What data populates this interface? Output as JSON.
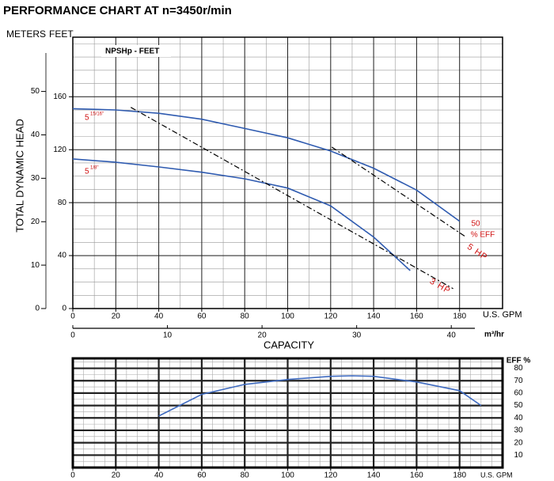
{
  "title": "PERFORMANCE CHART AT n=3450r/min",
  "chart_data": [
    {
      "type": "line",
      "y_label": "TOTAL DYNAMIC HEAD",
      "y_unit": "FEET",
      "y2_unit": "METERS",
      "x_unit": "U.S. GPM",
      "x2_unit": "m³/hr",
      "x_label": "CAPACITY",
      "annotation": "NPSHp - FEET",
      "xlim": [
        0,
        200
      ],
      "xticks": [
        0,
        20,
        40,
        60,
        80,
        100,
        120,
        140,
        160,
        180
      ],
      "x2lim": [
        0,
        45.42
      ],
      "x2ticks": [
        0,
        10,
        20,
        30,
        40
      ],
      "ylim": [
        0,
        205
      ],
      "yticks": [
        0,
        40,
        80,
        120,
        160
      ],
      "y2lim": [
        0,
        62.5
      ],
      "y2ticks": [
        0,
        10,
        20,
        30,
        40,
        50
      ],
      "grid": true,
      "series": [
        {
          "label": "5",
          "label_sup": "15/16\"",
          "color": "#2f5bb0",
          "style": "solid",
          "x": [
            0,
            20,
            40,
            60,
            80,
            100,
            120,
            140,
            160,
            180
          ],
          "values": [
            151,
            150,
            147.5,
            143,
            136,
            129,
            119,
            106,
            89.5,
            66
          ]
        },
        {
          "label": "5",
          "label_sup": "1/8\"",
          "color": "#2f5bb0",
          "style": "solid",
          "x": [
            0,
            20,
            40,
            60,
            80,
            100,
            120,
            140,
            157
          ],
          "values": [
            113,
            110.5,
            107,
            103,
            98,
            91,
            77.6,
            54,
            28.7
          ]
        },
        {
          "label": "3 HP",
          "color": "#000000",
          "style": "dashdot",
          "x": [
            27,
            177
          ],
          "values": [
            152,
            15
          ]
        },
        {
          "label": "5 HP",
          "color": "#000000",
          "style": "dashdot",
          "x": [
            120.5,
            183
          ],
          "values": [
            122,
            54
          ]
        }
      ],
      "eff_label": [
        "50",
        "% EFF"
      ]
    },
    {
      "type": "line",
      "y_label": "EFF %",
      "x_unit": "U.S. GPM",
      "xlim": [
        0,
        200
      ],
      "xticks": [
        0,
        20,
        40,
        60,
        80,
        100,
        120,
        140,
        160,
        180
      ],
      "ylim": [
        0,
        88
      ],
      "yticks": [
        10,
        20,
        30,
        40,
        50,
        60,
        70,
        80
      ],
      "grid": true,
      "series": [
        {
          "color": "#3f6bc0",
          "style": "solid",
          "x": [
            40,
            60,
            80,
            100,
            120,
            130,
            140,
            160,
            180,
            190
          ],
          "values": [
            41.5,
            59,
            67,
            71,
            73.5,
            74,
            73.5,
            69,
            62,
            50
          ]
        }
      ]
    }
  ]
}
